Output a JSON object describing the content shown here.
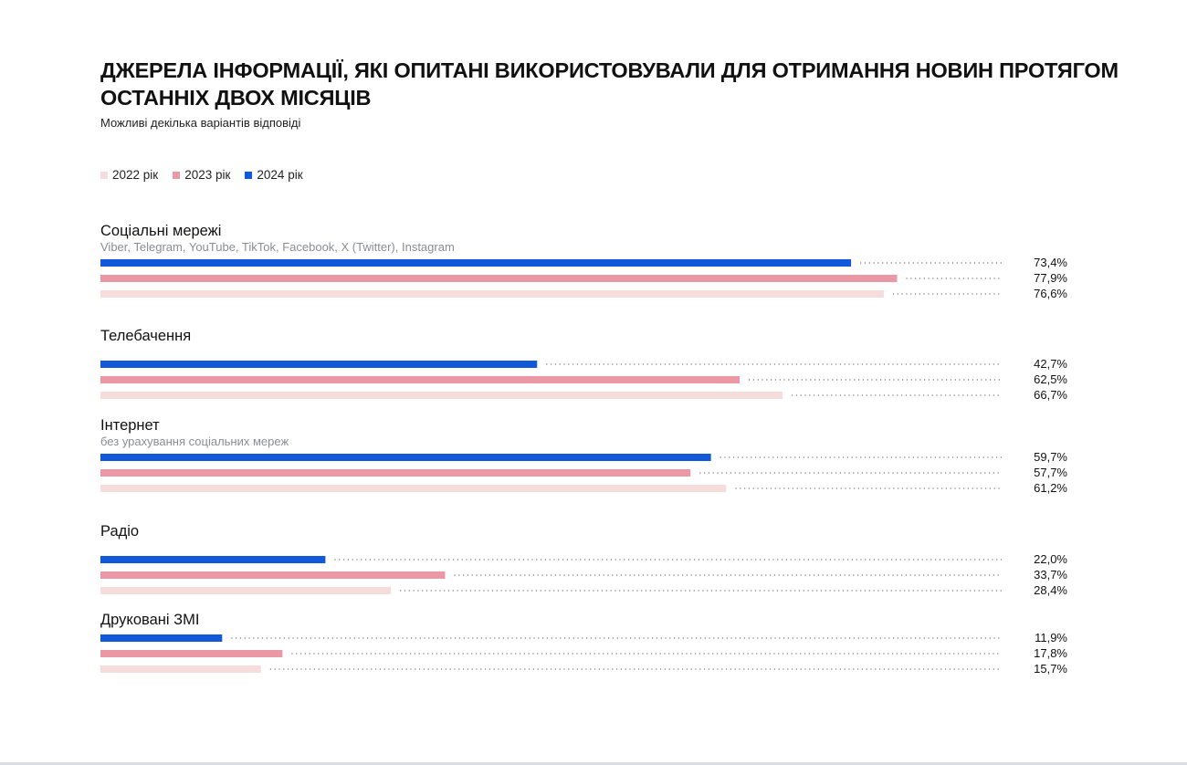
{
  "title": "ДЖЕРЕЛА ІНФОРМАЦІЇ, ЯКІ ОПИТАНІ ВИКОРИСТОВУВАЛИ ДЛЯ ОТРИМАННЯ НОВИН ПРОТЯГОМ ОСТАННІХ ДВОХ МІСЯЦІВ",
  "subtitle": "Можливі декілька варіантів відповіді",
  "legend": [
    {
      "label": "2022 рік",
      "color": "#f7dcdc"
    },
    {
      "label": "2023 рік",
      "color": "#ea97a6"
    },
    {
      "label": "2024 рік",
      "color": "#1159d8"
    }
  ],
  "chart_data": {
    "type": "bar",
    "orientation": "horizontal",
    "value_suffix": "%",
    "xlim": [
      0,
      100
    ],
    "legend_placement": "top-left",
    "grid": false,
    "categories": [
      {
        "label": "Соціальні мережі",
        "sublabel": "Viber, Telegram, YouTube, TikTok, Facebook, X (Twitter), Instagram"
      },
      {
        "label": "Телебачення",
        "sublabel": ""
      },
      {
        "label": "Інтернет",
        "sublabel": "без урахування соціальних мереж"
      },
      {
        "label": "Радіо",
        "sublabel": ""
      },
      {
        "label": "Друковані ЗМІ",
        "sublabel": ""
      }
    ],
    "series": [
      {
        "name": "2024 рік",
        "color": "#1159d8",
        "values": [
          73.4,
          42.7,
          59.7,
          22.0,
          11.9
        ],
        "labels": [
          "73,4%",
          "42,7%",
          "59,7%",
          "22,0%",
          "11,9%"
        ]
      },
      {
        "name": "2023 рік",
        "color": "#ea97a6",
        "values": [
          77.9,
          62.5,
          57.7,
          33.7,
          17.8
        ],
        "labels": [
          "77,9%",
          "62,5%",
          "57,7%",
          "33,7%",
          "17,8%"
        ]
      },
      {
        "name": "2022 рік",
        "color": "#f7dcdc",
        "values": [
          76.6,
          66.7,
          61.2,
          28.4,
          15.7
        ],
        "labels": [
          "76,6%",
          "66,7%",
          "61,2%",
          "28,4%",
          "15,7%"
        ]
      }
    ]
  }
}
